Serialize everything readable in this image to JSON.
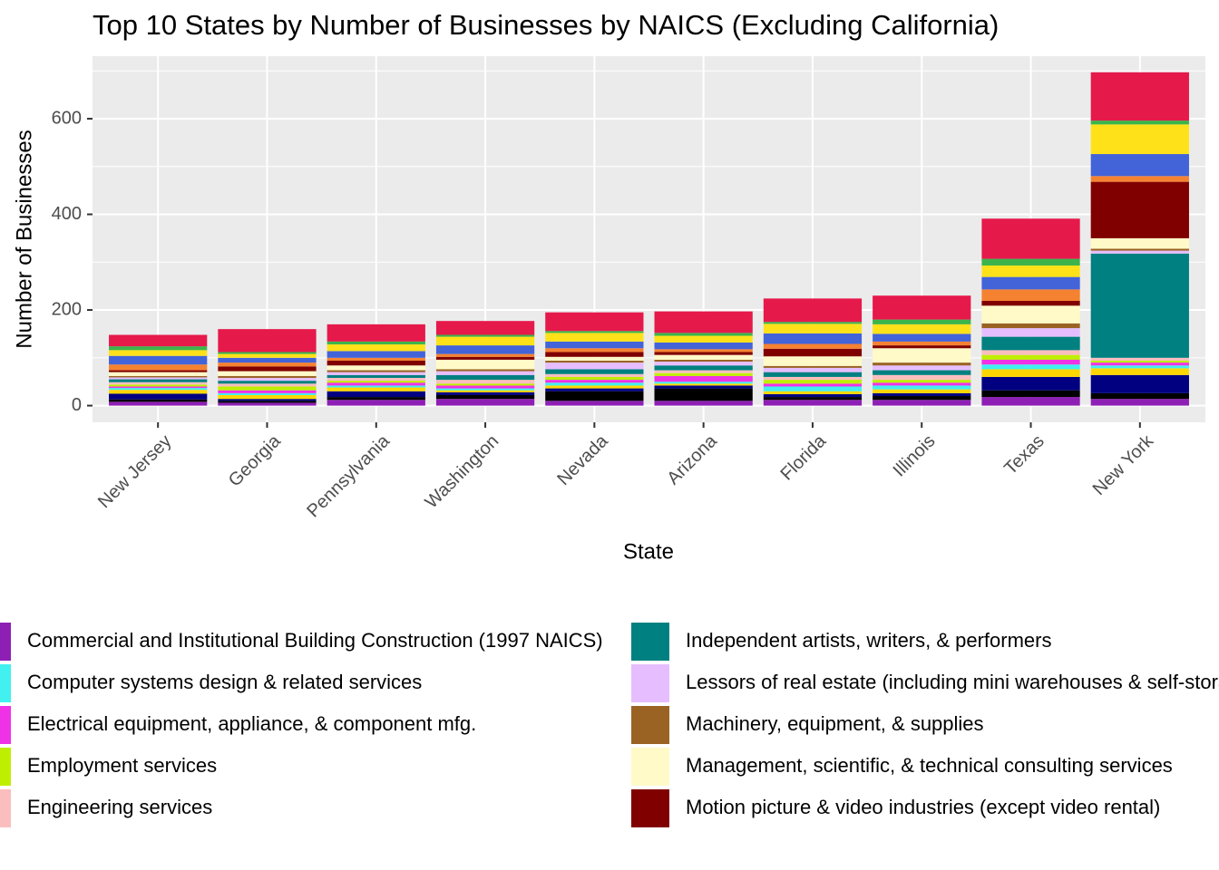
{
  "chart_data": {
    "type": "stacked_bar",
    "title": "Top 10 States by Number of Businesses by NAICS (Excluding California)",
    "x_label": "State",
    "y_label": "Number of Businesses",
    "categories": [
      "New Jersey",
      "Georgia",
      "Pennsylvania",
      "Washington",
      "Nevada",
      "Arizona",
      "Florida",
      "Illinois",
      "Texas",
      "New York"
    ],
    "ylim": [
      -34.9,
      730.7
    ],
    "yticks": [
      0,
      200,
      400,
      600
    ],
    "grid": true,
    "series": [
      {
        "name": "Commercial and Institutional Building Construction (1997 NAICS)",
        "color": "#8E1FB5",
        "values": [
          8,
          6,
          12,
          14,
          10,
          10,
          12,
          12,
          18,
          14
        ]
      },
      {
        "color": "#000000",
        "values": [
          5,
          4,
          6,
          8,
          20,
          26,
          6,
          8,
          14,
          12
        ]
      },
      {
        "color": "#000080",
        "values": [
          12,
          4,
          12,
          6,
          6,
          6,
          6,
          6,
          28,
          38
        ]
      },
      {
        "color": "#FFD700",
        "values": [
          8,
          8,
          8,
          4,
          6,
          4,
          6,
          8,
          16,
          14
        ]
      },
      {
        "name": "Computer systems design & related services",
        "color": "#42F0F0",
        "values": [
          4,
          4,
          4,
          4,
          6,
          4,
          10,
          8,
          10,
          6
        ]
      },
      {
        "name": "Electrical equipment, appliance, & component mfg.",
        "color": "#F032E6",
        "values": [
          3,
          6,
          6,
          6,
          6,
          12,
          6,
          6,
          10,
          6
        ]
      },
      {
        "name": "Employment services",
        "color": "#BFEF00",
        "values": [
          4,
          8,
          4,
          4,
          6,
          6,
          8,
          6,
          10,
          4
        ]
      },
      {
        "name": "Engineering services",
        "color": "#FABEBE",
        "values": [
          5,
          6,
          6,
          8,
          6,
          6,
          6,
          10,
          10,
          6
        ]
      },
      {
        "name": "Independent artists, writers, & performers",
        "color": "#008080",
        "values": [
          6,
          6,
          6,
          10,
          10,
          10,
          10,
          10,
          28,
          218
        ]
      },
      {
        "name": "Lessors of real estate (including mini warehouses & self-storage units)",
        "color": "#E6BEFF",
        "values": [
          4,
          6,
          6,
          8,
          14,
          8,
          9,
          10,
          18,
          6
        ]
      },
      {
        "name": "Machinery, equipment, & supplies",
        "color": "#9A6324",
        "values": [
          3,
          4,
          4,
          4,
          4,
          4,
          4,
          6,
          10,
          4
        ]
      },
      {
        "name": "Management, scientific, & technical consulting services",
        "color": "#FFFAC8",
        "values": [
          8,
          10,
          10,
          20,
          8,
          10,
          20,
          30,
          37,
          22
        ]
      },
      {
        "name": "Motion picture & video industries (except video rental)",
        "color": "#800000",
        "values": [
          4,
          10,
          10,
          6,
          10,
          6,
          16,
          6,
          10,
          118
        ]
      },
      {
        "color": "#F58231",
        "values": [
          12,
          8,
          6,
          6,
          8,
          6,
          10,
          8,
          24,
          12
        ]
      },
      {
        "color": "#4363D8",
        "values": [
          18,
          10,
          14,
          18,
          14,
          14,
          22,
          16,
          26,
          46
        ]
      },
      {
        "color": "#FFE119",
        "values": [
          12,
          8,
          14,
          18,
          18,
          14,
          20,
          20,
          24,
          62
        ]
      },
      {
        "color": "#3CB44B",
        "values": [
          8,
          4,
          6,
          4,
          4,
          6,
          4,
          10,
          14,
          8
        ]
      },
      {
        "color": "#E6194B",
        "values": [
          24,
          48,
          36,
          29,
          39,
          45,
          49,
          50,
          84,
          101
        ]
      }
    ]
  }
}
